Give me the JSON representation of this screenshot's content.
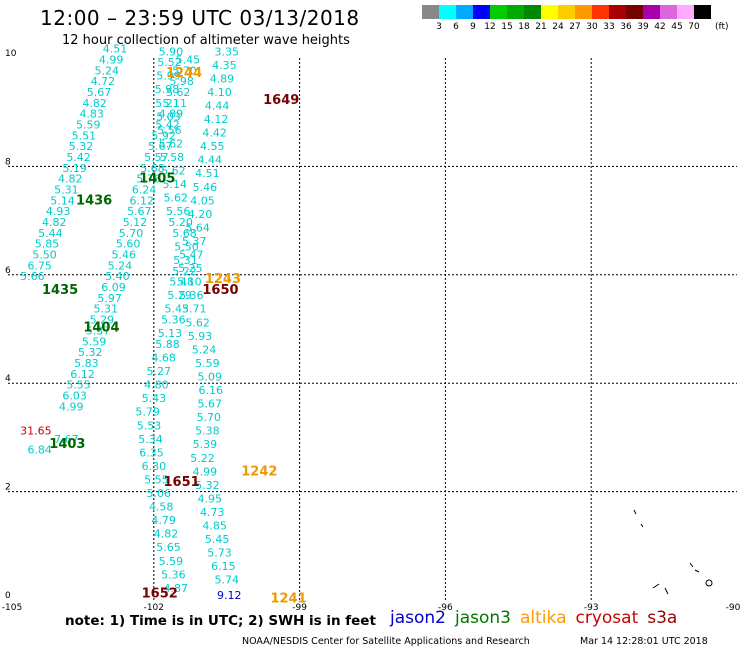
{
  "header": {
    "title": "12:00 – 23:59 UTC 03/13/2018",
    "subtitle": "12 hour collection of altimeter wave heights"
  },
  "colorbar": {
    "colors": [
      "#888888",
      "#00ffff",
      "#00aaff",
      "#0000ff",
      "#00cc00",
      "#00aa00",
      "#008800",
      "#ffff00",
      "#ffcc00",
      "#ff9900",
      "#ff3300",
      "#aa0000",
      "#770000",
      "#aa00aa",
      "#dd66dd",
      "#ffaaff",
      "#000000"
    ],
    "labels": [
      "3",
      "6",
      "9",
      "12",
      "15",
      "18",
      "21",
      "24",
      "27",
      "30",
      "33",
      "36",
      "39",
      "42",
      "45",
      "70"
    ],
    "units": "(ft)"
  },
  "footer": {
    "note": "note: 1) Time is in UTC; 2) SWH is in feet",
    "legend": [
      {
        "name": "jason2",
        "color": "#0000cc"
      },
      {
        "name": "jason3",
        "color": "#007700"
      },
      {
        "name": "altika",
        "color": "#ff9900"
      },
      {
        "name": "cryosat",
        "color": "#cc0000"
      },
      {
        "name": "s3a",
        "color": "#990000"
      }
    ],
    "credit": "NOAA/NESDIS Center for Satellite Applications and Research",
    "timestamp": "Mar 14 12:28:01 UTC 2018"
  },
  "chart_data": {
    "type": "scatter",
    "title": "12:00 – 23:59 UTC 03/13/2018",
    "subtitle": "12 hour collection of altimeter wave heights",
    "xlabel": "",
    "ylabel": "",
    "xlim": [
      -105,
      -90
    ],
    "ylim": [
      0,
      10
    ],
    "x_ticks": [
      "-105",
      "-102",
      "-99",
      "-96",
      "-93",
      "-90"
    ],
    "y_ticks": [
      "0",
      "2",
      "4",
      "6",
      "8",
      "10"
    ],
    "grid": true,
    "series": [
      {
        "color": "#00cccc",
        "points": [
          {
            "x": -104.75,
            "y": 5.9,
            "v": "5.66"
          },
          {
            "x": -104.6,
            "y": 6.1,
            "v": "6.75"
          },
          {
            "x": -104.5,
            "y": 6.3,
            "v": "5.50"
          },
          {
            "x": -104.45,
            "y": 6.5,
            "v": "5.85"
          },
          {
            "x": -104.38,
            "y": 6.7,
            "v": "5.44"
          },
          {
            "x": -104.3,
            "y": 6.9,
            "v": "4.82"
          },
          {
            "x": -104.22,
            "y": 7.1,
            "v": "4.93"
          },
          {
            "x": -104.13,
            "y": 7.3,
            "v": "5.14"
          },
          {
            "x": -104.05,
            "y": 7.5,
            "v": "5.31"
          },
          {
            "x": -103.97,
            "y": 7.7,
            "v": "4.82"
          },
          {
            "x": -103.88,
            "y": 7.9,
            "v": "5.19"
          },
          {
            "x": -103.8,
            "y": 8.1,
            "v": "5.42"
          },
          {
            "x": -103.75,
            "y": 8.3,
            "v": "5.32"
          },
          {
            "x": -103.69,
            "y": 8.5,
            "v": "5.51"
          },
          {
            "x": -103.6,
            "y": 8.7,
            "v": "5.59"
          },
          {
            "x": -103.53,
            "y": 8.9,
            "v": "4.83"
          },
          {
            "x": -103.47,
            "y": 9.1,
            "v": "4.82"
          },
          {
            "x": -103.38,
            "y": 9.3,
            "v": "5.67"
          },
          {
            "x": -103.3,
            "y": 9.5,
            "v": "4.72"
          },
          {
            "x": -103.22,
            "y": 9.7,
            "v": "5.24"
          },
          {
            "x": -103.13,
            "y": 9.9,
            "v": "4.99"
          },
          {
            "x": -103.05,
            "y": 10.1,
            "v": "4.51"
          }
        ]
      },
      {
        "color": "#00cccc",
        "points": [
          {
            "x": -103.8,
            "y": 3.9,
            "v": "5.55"
          },
          {
            "x": -103.88,
            "y": 3.7,
            "v": "6.03"
          },
          {
            "x": -103.95,
            "y": 3.5,
            "v": "4.99"
          },
          {
            "x": -104.05,
            "y": 2.9,
            "v": "7.67"
          },
          {
            "x": -104.6,
            "y": 2.7,
            "v": "6.84"
          },
          {
            "x": -103.72,
            "y": 4.1,
            "v": "6.12"
          },
          {
            "x": -103.64,
            "y": 4.3,
            "v": "5.83"
          },
          {
            "x": -103.56,
            "y": 4.5,
            "v": "5.32"
          },
          {
            "x": -103.48,
            "y": 4.7,
            "v": "5.59"
          },
          {
            "x": -103.4,
            "y": 4.9,
            "v": "5.37"
          },
          {
            "x": -103.32,
            "y": 5.1,
            "v": "5.29"
          },
          {
            "x": -103.24,
            "y": 5.3,
            "v": "5.31"
          },
          {
            "x": -103.16,
            "y": 5.5,
            "v": "5.97"
          },
          {
            "x": -103.08,
            "y": 5.7,
            "v": "6.09"
          },
          {
            "x": -103.0,
            "y": 5.9,
            "v": "5.40"
          },
          {
            "x": -102.95,
            "y": 6.1,
            "v": "5.24"
          },
          {
            "x": -102.87,
            "y": 6.3,
            "v": "5.46"
          },
          {
            "x": -102.78,
            "y": 6.5,
            "v": "5.60"
          },
          {
            "x": -102.72,
            "y": 6.7,
            "v": "5.70"
          },
          {
            "x": -102.64,
            "y": 6.9,
            "v": "5.12"
          },
          {
            "x": -102.55,
            "y": 7.1,
            "v": "5.67"
          },
          {
            "x": -102.5,
            "y": 7.3,
            "v": "6.12"
          },
          {
            "x": -102.45,
            "y": 7.5,
            "v": "6.24"
          },
          {
            "x": -102.36,
            "y": 7.7,
            "v": "5.78"
          },
          {
            "x": -102.28,
            "y": 7.9,
            "v": "5.68"
          },
          {
            "x": -102.2,
            "y": 8.1,
            "v": "5.57"
          },
          {
            "x": -102.12,
            "y": 8.3,
            "v": "5.67"
          },
          {
            "x": -102.05,
            "y": 8.5,
            "v": "5.92"
          },
          {
            "x": -101.97,
            "y": 8.7,
            "v": "5.42"
          },
          {
            "x": -101.9,
            "y": 8.9,
            "v": "4.89"
          },
          {
            "x": -101.82,
            "y": 9.1,
            "v": "5.11"
          },
          {
            "x": -101.75,
            "y": 9.3,
            "v": "5.62"
          },
          {
            "x": -101.68,
            "y": 9.5,
            "v": "5.98"
          },
          {
            "x": -101.62,
            "y": 9.7,
            "v": "5.70"
          },
          {
            "x": -101.55,
            "y": 9.9,
            "v": "5.45"
          }
        ]
      },
      {
        "color": "#00cccc",
        "points": [
          {
            "x": -101.8,
            "y": 0.15,
            "v": "4.87"
          },
          {
            "x": -101.85,
            "y": 0.4,
            "v": "5.36"
          },
          {
            "x": -101.9,
            "y": 0.65,
            "v": "5.59"
          },
          {
            "x": -101.95,
            "y": 0.9,
            "v": "5.65"
          },
          {
            "x": -102.0,
            "y": 1.15,
            "v": "4.82"
          },
          {
            "x": -102.05,
            "y": 1.4,
            "v": "4.79"
          },
          {
            "x": -102.1,
            "y": 1.65,
            "v": "4.58"
          },
          {
            "x": -102.15,
            "y": 1.9,
            "v": "5.06"
          },
          {
            "x": -102.2,
            "y": 2.15,
            "v": "5.55"
          },
          {
            "x": -102.25,
            "y": 2.4,
            "v": "6.30"
          },
          {
            "x": -102.3,
            "y": 2.65,
            "v": "6.35"
          },
          {
            "x": -102.32,
            "y": 2.9,
            "v": "5.34"
          },
          {
            "x": -102.35,
            "y": 3.15,
            "v": "5.53"
          },
          {
            "x": -102.38,
            "y": 3.4,
            "v": "5.79"
          },
          {
            "x": -102.25,
            "y": 3.65,
            "v": "5.43"
          },
          {
            "x": -102.2,
            "y": 3.9,
            "v": "4.80"
          },
          {
            "x": -102.15,
            "y": 4.15,
            "v": "5.27"
          },
          {
            "x": -102.05,
            "y": 4.4,
            "v": "4.68"
          },
          {
            "x": -101.97,
            "y": 4.65,
            "v": "5.88"
          },
          {
            "x": -101.92,
            "y": 4.85,
            "v": "5.13"
          },
          {
            "x": -101.85,
            "y": 5.1,
            "v": "5.36"
          },
          {
            "x": -101.78,
            "y": 5.3,
            "v": "5.43"
          },
          {
            "x": -101.72,
            "y": 5.55,
            "v": "5.29"
          },
          {
            "x": -101.68,
            "y": 5.8,
            "v": "5.48"
          },
          {
            "x": -101.62,
            "y": 6.0,
            "v": "5.22"
          },
          {
            "x": -101.6,
            "y": 6.2,
            "v": "5.31"
          },
          {
            "x": -101.58,
            "y": 6.45,
            "v": "5.50"
          },
          {
            "x": -101.62,
            "y": 6.7,
            "v": "5.68"
          },
          {
            "x": -101.7,
            "y": 6.9,
            "v": "5.20"
          },
          {
            "x": -101.75,
            "y": 7.1,
            "v": "5.56"
          },
          {
            "x": -101.8,
            "y": 7.35,
            "v": "5.62"
          },
          {
            "x": -101.82,
            "y": 7.6,
            "v": "5.14"
          },
          {
            "x": -101.85,
            "y": 7.85,
            "v": "5.62"
          },
          {
            "x": -101.88,
            "y": 8.1,
            "v": "5.58"
          },
          {
            "x": -101.9,
            "y": 8.35,
            "v": "5.62"
          },
          {
            "x": -101.93,
            "y": 8.6,
            "v": "5.56"
          },
          {
            "x": -101.95,
            "y": 8.85,
            "v": "5.03"
          },
          {
            "x": -101.97,
            "y": 9.1,
            "v": "5.21"
          },
          {
            "x": -101.98,
            "y": 9.35,
            "v": "5.98"
          },
          {
            "x": -101.95,
            "y": 9.6,
            "v": "5.99"
          },
          {
            "x": -101.93,
            "y": 9.85,
            "v": "5.52"
          },
          {
            "x": -101.9,
            "y": 10.05,
            "v": "5.90"
          }
        ]
      },
      {
        "color": "#00cccc",
        "points": [
          {
            "x": -100.75,
            "y": 0.3,
            "v": "5.74"
          },
          {
            "x": -100.82,
            "y": 0.55,
            "v": "6.15"
          },
          {
            "x": -100.9,
            "y": 0.8,
            "v": "5.73"
          },
          {
            "x": -100.95,
            "y": 1.05,
            "v": "5.45"
          },
          {
            "x": -101.0,
            "y": 1.3,
            "v": "4.85"
          },
          {
            "x": -101.05,
            "y": 1.55,
            "v": "4.73"
          },
          {
            "x": -101.1,
            "y": 1.8,
            "v": "4.95"
          },
          {
            "x": -101.15,
            "y": 2.05,
            "v": "5.32"
          },
          {
            "x": -101.2,
            "y": 2.3,
            "v": "4.99"
          },
          {
            "x": -101.25,
            "y": 2.55,
            "v": "5.22"
          },
          {
            "x": -101.2,
            "y": 2.8,
            "v": "5.39"
          },
          {
            "x": -101.15,
            "y": 3.05,
            "v": "5.38"
          },
          {
            "x": -101.12,
            "y": 3.3,
            "v": "5.70"
          },
          {
            "x": -101.1,
            "y": 3.55,
            "v": "5.67"
          },
          {
            "x": -101.08,
            "y": 3.8,
            "v": "6.16"
          },
          {
            "x": -101.1,
            "y": 4.05,
            "v": "5.09"
          },
          {
            "x": -101.15,
            "y": 4.3,
            "v": "5.59"
          },
          {
            "x": -101.22,
            "y": 4.55,
            "v": "5.24"
          },
          {
            "x": -101.3,
            "y": 4.8,
            "v": "5.93"
          },
          {
            "x": -101.35,
            "y": 5.05,
            "v": "5.62"
          },
          {
            "x": -101.42,
            "y": 5.3,
            "v": "5.71"
          },
          {
            "x": -101.48,
            "y": 5.55,
            "v": "5.36"
          },
          {
            "x": -101.52,
            "y": 5.8,
            "v": "5.10"
          },
          {
            "x": -101.5,
            "y": 6.05,
            "v": "5.25"
          },
          {
            "x": -101.48,
            "y": 6.3,
            "v": "5.47"
          },
          {
            "x": -101.42,
            "y": 6.55,
            "v": "5.37"
          },
          {
            "x": -101.35,
            "y": 6.8,
            "v": "5.64"
          },
          {
            "x": -101.3,
            "y": 7.05,
            "v": "4.20"
          },
          {
            "x": -101.25,
            "y": 7.3,
            "v": "4.05"
          },
          {
            "x": -101.2,
            "y": 7.55,
            "v": "5.46"
          },
          {
            "x": -101.15,
            "y": 7.8,
            "v": "4.51"
          },
          {
            "x": -101.1,
            "y": 8.05,
            "v": "4.44"
          },
          {
            "x": -101.05,
            "y": 8.3,
            "v": "4.55"
          },
          {
            "x": -101.0,
            "y": 8.55,
            "v": "4.42"
          },
          {
            "x": -100.97,
            "y": 8.8,
            "v": "4.12"
          },
          {
            "x": -100.95,
            "y": 9.05,
            "v": "4.44"
          },
          {
            "x": -100.9,
            "y": 9.3,
            "v": "4.10"
          },
          {
            "x": -100.85,
            "y": 9.55,
            "v": "4.89"
          },
          {
            "x": -100.8,
            "y": 9.8,
            "v": "4.35"
          },
          {
            "x": -100.75,
            "y": 10.05,
            "v": "3.35"
          }
        ]
      },
      {
        "color": "#cc0000",
        "points": [
          {
            "x": -104.75,
            "y": 3.05,
            "v": "31.65"
          }
        ]
      },
      {
        "color": "#0000cc",
        "points": [
          {
            "x": -100.7,
            "y": 0.02,
            "v": "9.12"
          }
        ]
      }
    ],
    "pass_labels": [
      {
        "text": "1244",
        "x": -101.75,
        "y": 9.65,
        "color": "#ee9900"
      },
      {
        "text": "1649",
        "x": -99.75,
        "y": 9.15,
        "color": "#770000"
      },
      {
        "text": "1405",
        "x": -102.3,
        "y": 7.7,
        "color": "#006600"
      },
      {
        "text": "1436",
        "x": -103.6,
        "y": 7.3,
        "color": "#006600"
      },
      {
        "text": "1243",
        "x": -100.95,
        "y": 5.85,
        "color": "#ee9900"
      },
      {
        "text": "1650",
        "x": -101.0,
        "y": 5.65,
        "color": "#770000"
      },
      {
        "text": "1435",
        "x": -104.3,
        "y": 5.65,
        "color": "#006600"
      },
      {
        "text": "1404",
        "x": -103.45,
        "y": 4.95,
        "color": "#006600"
      },
      {
        "text": "1403",
        "x": -104.15,
        "y": 2.8,
        "color": "#006600"
      },
      {
        "text": "1242",
        "x": -100.2,
        "y": 2.3,
        "color": "#ee9900"
      },
      {
        "text": "1651",
        "x": -101.8,
        "y": 2.1,
        "color": "#770000"
      },
      {
        "text": "1652",
        "x": -102.25,
        "y": 0.05,
        "color": "#770000"
      },
      {
        "text": "1241",
        "x": -99.6,
        "y": -0.05,
        "color": "#ee9900"
      }
    ]
  }
}
